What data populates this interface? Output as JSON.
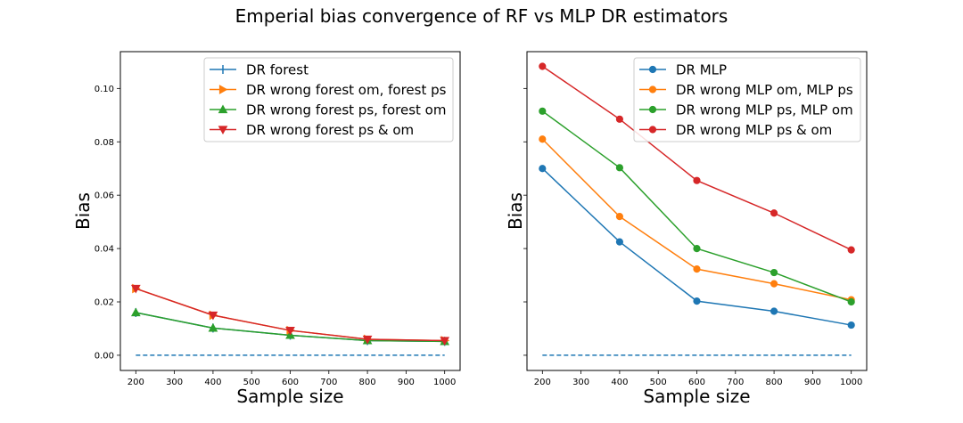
{
  "suptitle": "Emperial bias convergence of RF vs MLP DR estimators",
  "colors": {
    "blue": "#1f77b4",
    "orange": "#ff7f0e",
    "green": "#2ca02c",
    "red": "#d62728"
  },
  "chart_data": [
    {
      "type": "line",
      "xlabel": "Sample size",
      "ylabel": "Bias",
      "xlim": [
        160,
        1040
      ],
      "ylim": [
        -0.0057,
        0.1138
      ],
      "xticks": [
        200,
        300,
        400,
        500,
        600,
        700,
        800,
        900,
        1000
      ],
      "yticks": [
        0.0,
        0.02,
        0.04,
        0.06,
        0.08,
        0.1
      ],
      "ytick_labels": [
        "0.00",
        "0.02",
        "0.04",
        "0.06",
        "0.08",
        "0.10"
      ],
      "show_yticklabels": true,
      "legend_loc": "upper right",
      "x": [
        200,
        400,
        600,
        800,
        1000
      ],
      "series": [
        {
          "name": "DR forest",
          "color": "#1f77b4",
          "marker": "vline",
          "values": [
            0.016,
            0.0102,
            0.0075,
            0.0055,
            0.0052
          ]
        },
        {
          "name": "DR wrong forest om, forest ps",
          "color": "#ff7f0e",
          "marker": "tri-right",
          "values": [
            0.025,
            0.015,
            0.0093,
            0.006,
            0.0055
          ]
        },
        {
          "name": "DR wrong forest ps, forest om",
          "color": "#2ca02c",
          "marker": "tri-up",
          "values": [
            0.016,
            0.0102,
            0.0075,
            0.0055,
            0.0052
          ]
        },
        {
          "name": "DR wrong forest ps & om",
          "color": "#d62728",
          "marker": "tri-down",
          "values": [
            0.025,
            0.015,
            0.0093,
            0.006,
            0.0055
          ]
        }
      ],
      "baseline": {
        "value": 0.0,
        "from": 200,
        "to": 1000,
        "color": "#1f77b4"
      }
    },
    {
      "type": "line",
      "xlabel": "Sample size",
      "ylabel": "Bias",
      "xlim": [
        160,
        1040
      ],
      "ylim": [
        -0.0057,
        0.1138
      ],
      "xticks": [
        200,
        300,
        400,
        500,
        600,
        700,
        800,
        900,
        1000
      ],
      "yticks": [
        0.0,
        0.02,
        0.04,
        0.06,
        0.08,
        0.1
      ],
      "ytick_labels": [
        "0.00",
        "0.02",
        "0.04",
        "0.06",
        "0.08",
        "0.10"
      ],
      "show_yticklabels": false,
      "legend_loc": "upper right",
      "x": [
        200,
        400,
        600,
        800,
        1000
      ],
      "series": [
        {
          "name": "DR MLP",
          "color": "#1f77b4",
          "marker": "circle",
          "values": [
            0.07,
            0.0425,
            0.0203,
            0.0165,
            0.0113
          ]
        },
        {
          "name": "DR wrong MLP om, MLP ps",
          "color": "#ff7f0e",
          "marker": "circle",
          "values": [
            0.081,
            0.052,
            0.0323,
            0.0268,
            0.0208
          ]
        },
        {
          "name": "DR wrong MLP ps, MLP om",
          "color": "#2ca02c",
          "marker": "circle",
          "values": [
            0.0915,
            0.0703,
            0.04,
            0.031,
            0.02
          ]
        },
        {
          "name": "DR wrong MLP ps & om",
          "color": "#d62728",
          "marker": "circle",
          "values": [
            0.1083,
            0.0885,
            0.0655,
            0.0533,
            0.0395
          ]
        }
      ],
      "baseline": {
        "value": 0.0,
        "from": 200,
        "to": 1000,
        "color": "#1f77b4"
      }
    }
  ]
}
